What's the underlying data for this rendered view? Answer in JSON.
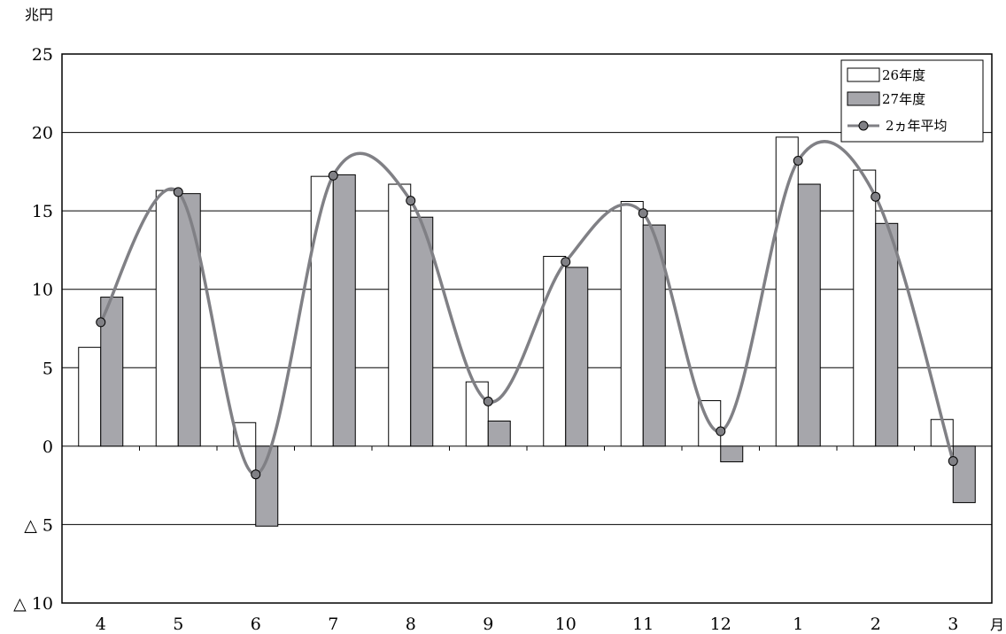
{
  "chart_data": {
    "type": "bar",
    "yunit": "兆円",
    "xunit": "月",
    "categories": [
      "4",
      "5",
      "6",
      "7",
      "8",
      "9",
      "10",
      "11",
      "12",
      "1",
      "2",
      "3"
    ],
    "ylim": [
      -10,
      25
    ],
    "yticks": [
      25,
      20,
      15,
      10,
      5,
      0,
      -5,
      -10
    ],
    "ytick_labels": [
      "25",
      "20",
      "15",
      "10",
      "5",
      "0",
      "△ 5",
      "△ 10"
    ],
    "grid": true,
    "legend_position": "top-right",
    "series": [
      {
        "name": "26年度",
        "kind": "bar",
        "fill": "#ffffff",
        "values": [
          6.3,
          16.3,
          1.5,
          17.2,
          16.7,
          4.1,
          12.1,
          15.6,
          2.9,
          19.7,
          17.6,
          1.7
        ]
      },
      {
        "name": "27年度",
        "kind": "bar",
        "fill": "#a6a6ab",
        "values": [
          9.5,
          16.1,
          -5.1,
          17.3,
          14.6,
          1.6,
          11.4,
          14.1,
          -1.0,
          16.7,
          14.2,
          -3.6
        ]
      },
      {
        "name": "2ヵ年平均",
        "kind": "line",
        "color": "#808085",
        "values": [
          7.9,
          16.2,
          -1.8,
          17.25,
          15.65,
          2.85,
          11.75,
          14.85,
          0.95,
          18.2,
          15.9,
          -0.95
        ]
      }
    ]
  }
}
